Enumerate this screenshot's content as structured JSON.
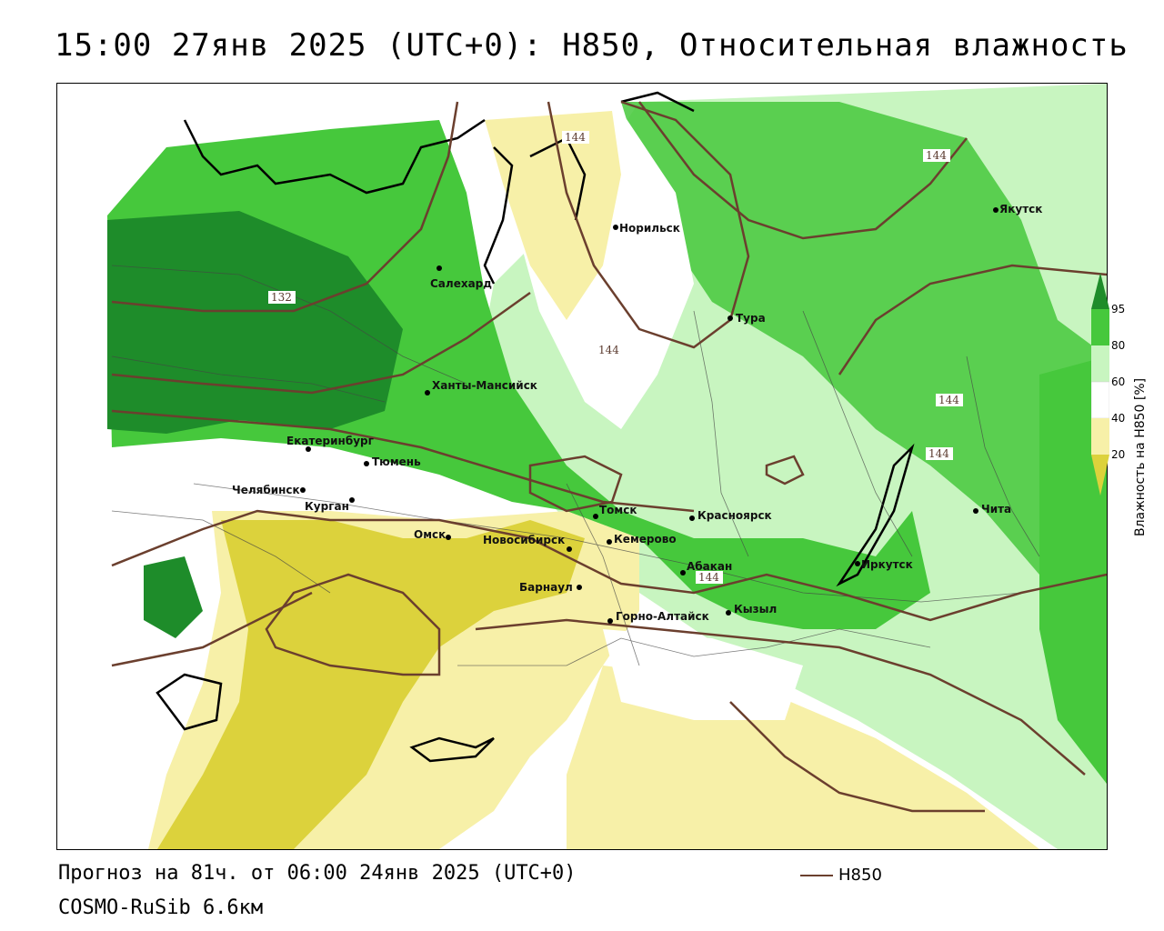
{
  "title": "15:00 27янв 2025 (UTC+0): H850, Относительная влажность",
  "footer": {
    "forecast": "Прогноз на 81ч. от 06:00 24янв 2025 (UTC+0)",
    "model": "COSMO-RuSib 6.6км"
  },
  "legend": {
    "line_label": "H850",
    "line_color": "#6b3f2e"
  },
  "colorbar": {
    "title": "Влажность на H850 [%]",
    "ticks": [
      "95",
      "80",
      "60",
      "40",
      "20"
    ],
    "colors": {
      "c95": "#1e8c2a",
      "c80": "#46c83c",
      "c60": "#c8f5c0",
      "c40": "#ffffff",
      "c20": "#f7f0a8",
      "c0": "#dcd23c"
    }
  },
  "cities": [
    {
      "name": "Норильск"
    },
    {
      "name": "Якутск"
    },
    {
      "name": "Салехард"
    },
    {
      "name": "Тура"
    },
    {
      "name": "Ханты-Мансийск"
    },
    {
      "name": "Екатеринбург"
    },
    {
      "name": "Тюмень"
    },
    {
      "name": "Челябинск"
    },
    {
      "name": "Курган"
    },
    {
      "name": "Омск"
    },
    {
      "name": "Новосибирск"
    },
    {
      "name": "Томск"
    },
    {
      "name": "Кемерово"
    },
    {
      "name": "Красноярск"
    },
    {
      "name": "Барнаул"
    },
    {
      "name": "Абакан"
    },
    {
      "name": "Горно-Алтайск"
    },
    {
      "name": "Кызыл"
    },
    {
      "name": "Иркутск"
    },
    {
      "name": "Чита"
    }
  ],
  "contour_labels": [
    "144",
    "144",
    "132",
    "144",
    "144",
    "144",
    "144"
  ]
}
